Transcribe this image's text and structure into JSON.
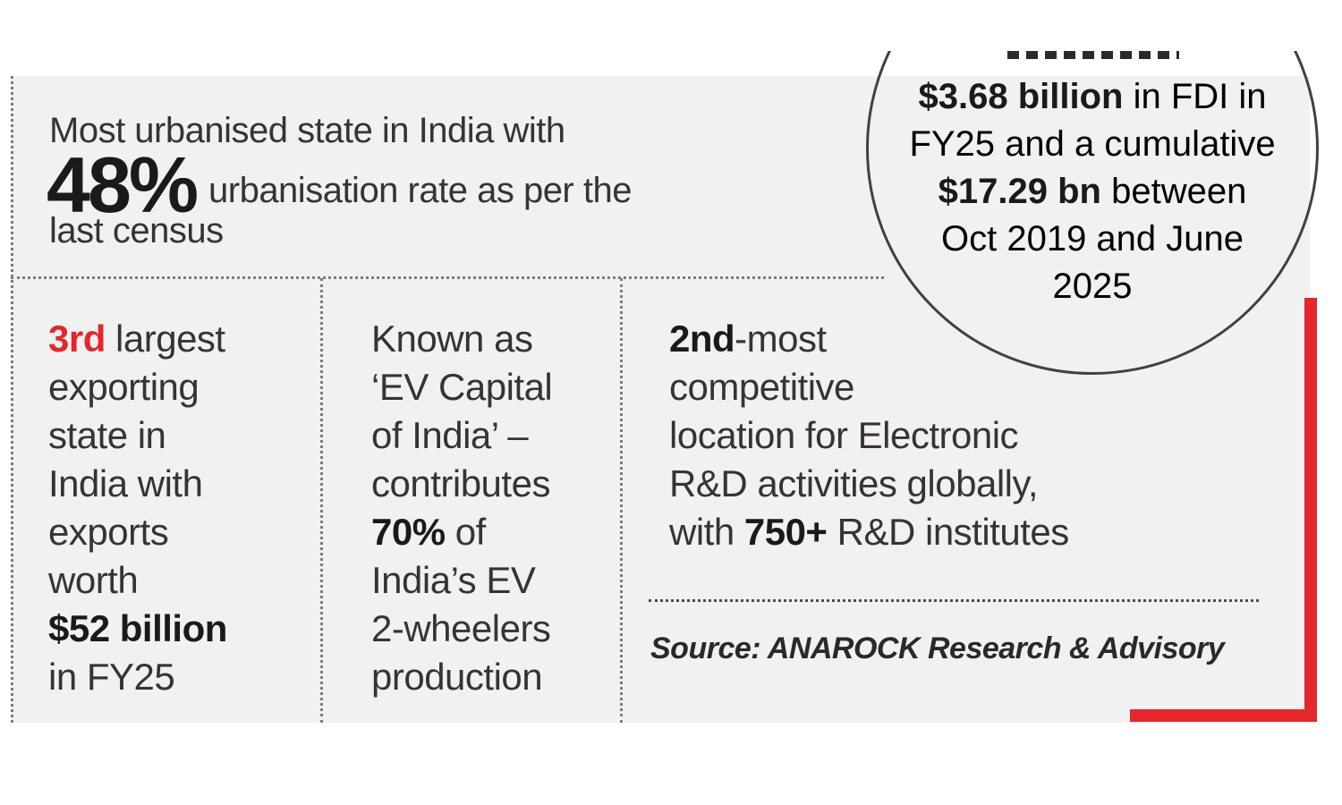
{
  "colors": {
    "accent_red": "#e5262b",
    "panel_bg": "#f1f1f2",
    "text": "#373334",
    "bold_text": "#1b191a",
    "dotted_line": "#7c7c7c",
    "circle_outline": "#414042"
  },
  "header": {
    "line1": "Most urbanised state in India with",
    "stat": "48%",
    "line2": "urbanisation rate as per the",
    "line3": "last census"
  },
  "fdi_circle": {
    "top_text_clipped": true,
    "segments": [
      {
        "t": "$3.68 billion",
        "b": true
      },
      {
        "t": " in FDI in\nFY25 and a cumulative\n"
      },
      {
        "t": "$17.29 bn",
        "b": true
      },
      {
        "t": " between\nOct 2019 and June\n2025"
      }
    ]
  },
  "stats": [
    {
      "id": "exports",
      "segments": [
        {
          "t": "3rd",
          "b": true,
          "red": true
        },
        {
          "t": " largest\nexporting\nstate in\nIndia with\nexports\nworth\n"
        },
        {
          "t": "$52 billion",
          "b": true
        },
        {
          "t": "\nin FY25"
        }
      ]
    },
    {
      "id": "ev-capital",
      "segments": [
        {
          "t": "Known as\n‘EV Capital\nof India’ –\ncontributes\n"
        },
        {
          "t": "70%",
          "b": true
        },
        {
          "t": " of\nIndia’s EV\n2-wheelers\nproduction"
        }
      ]
    },
    {
      "id": "rnd-competitiveness",
      "segments": [
        {
          "t": "2nd",
          "b": true
        },
        {
          "t": "-most\ncompetitive\nlocation for Electronic\nR&D activities globally,\nwith "
        },
        {
          "t": "750+",
          "b": true
        },
        {
          "t": " R&D institutes"
        }
      ]
    }
  ],
  "source": {
    "label": "Source: ANAROCK Research & Advisory"
  }
}
